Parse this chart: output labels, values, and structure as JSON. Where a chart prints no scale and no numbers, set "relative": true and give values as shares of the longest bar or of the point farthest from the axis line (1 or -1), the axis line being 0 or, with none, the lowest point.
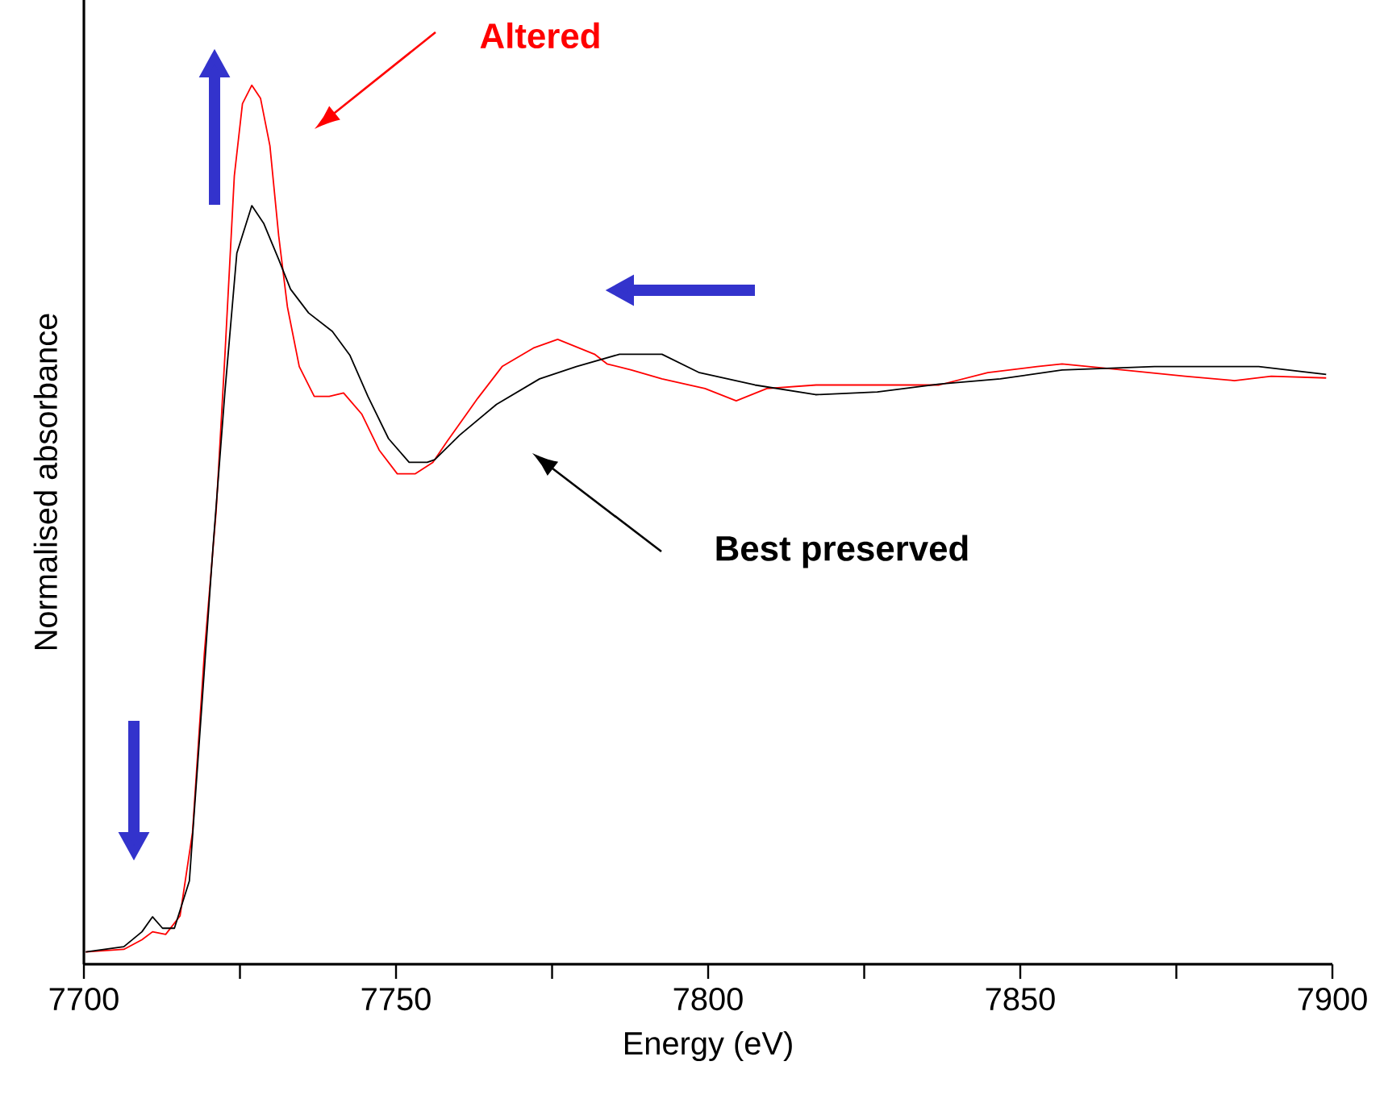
{
  "chart_data": {
    "type": "line",
    "xlabel": "Energy (eV)",
    "ylabel": "Normalised absorbance",
    "relative": true,
    "marker": "none",
    "xlim": [
      7700,
      7900
    ],
    "xticks": [
      7700,
      {
        "value": 7725,
        "label": null
      },
      7750,
      {
        "value": 7775,
        "label": null
      },
      7800,
      {
        "value": 7825,
        "label": null
      },
      7850,
      {
        "value": 7875,
        "label": null
      },
      7900
    ],
    "series": [
      {
        "name": "Altered",
        "color": "#ff0000",
        "x": [
          7700.3,
          7706.4,
          7709.3,
          7711.0,
          7713.1,
          7715.4,
          7717.4,
          7719.3,
          7721.2,
          7722.6,
          7724.1,
          7725.4,
          7726.9,
          7728.3,
          7729.8,
          7731.2,
          7732.6,
          7734.5,
          7736.9,
          7739.3,
          7741.6,
          7744.5,
          7747.3,
          7750.2,
          7753.1,
          7755.9,
          7758.2,
          7763.1,
          7767.0,
          7772.0,
          7775.9,
          7781.8,
          7783.8,
          7787.7,
          7792.6,
          7799.5,
          7804.5,
          7809.4,
          7817.3,
          7827.1,
          7837.0,
          7844.8,
          7852.7,
          7856.7,
          7866.5,
          7876.4,
          7884.3,
          7890.2,
          7899.0
        ],
        "values": [
          0.014,
          0.017,
          0.028,
          0.037,
          0.034,
          0.055,
          0.15,
          0.354,
          0.517,
          0.694,
          0.897,
          0.979,
          1.0,
          0.985,
          0.931,
          0.829,
          0.748,
          0.68,
          0.646,
          0.646,
          0.65,
          0.626,
          0.585,
          0.558,
          0.558,
          0.571,
          0.595,
          0.644,
          0.68,
          0.701,
          0.711,
          0.694,
          0.683,
          0.676,
          0.666,
          0.655,
          0.641,
          0.655,
          0.659,
          0.659,
          0.659,
          0.673,
          0.68,
          0.683,
          0.676,
          0.669,
          0.664,
          0.669,
          0.667
        ]
      },
      {
        "name": "Best preserved",
        "color": "#000000",
        "x": [
          7700.3,
          7706.4,
          7709.3,
          7711.0,
          7712.6,
          7714.5,
          7716.9,
          7718.8,
          7720.7,
          7722.6,
          7724.5,
          7726.9,
          7728.8,
          7731.2,
          7733.1,
          7736.0,
          7739.8,
          7742.6,
          7745.5,
          7748.8,
          7752.1,
          7755.0,
          7756.2,
          7760.2,
          7766.1,
          7773.0,
          7778.9,
          7785.8,
          7792.6,
          7798.6,
          7807.5,
          7817.2,
          7827.1,
          7837.0,
          7846.8,
          7856.7,
          7871.5,
          7888.2,
          7899.0
        ],
        "values": [
          0.014,
          0.02,
          0.037,
          0.054,
          0.041,
          0.041,
          0.095,
          0.285,
          0.476,
          0.652,
          0.809,
          0.863,
          0.843,
          0.802,
          0.768,
          0.741,
          0.72,
          0.693,
          0.646,
          0.598,
          0.571,
          0.571,
          0.574,
          0.602,
          0.637,
          0.666,
          0.68,
          0.694,
          0.694,
          0.673,
          0.659,
          0.648,
          0.651,
          0.66,
          0.666,
          0.676,
          0.68,
          0.68,
          0.671
        ]
      }
    ]
  }
}
